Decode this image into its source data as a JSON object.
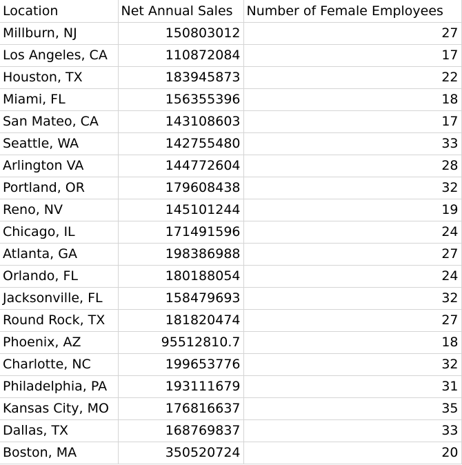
{
  "sheet": {
    "headers": [
      "Location",
      "Net Annual Sales",
      "Number of Female Employees"
    ],
    "rows": [
      [
        "Millburn, NJ",
        "150803012",
        "27"
      ],
      [
        "Los Angeles, CA",
        "110872084",
        "17"
      ],
      [
        "Houston, TX",
        "183945873",
        "22"
      ],
      [
        "Miami, FL",
        "156355396",
        "18"
      ],
      [
        "San Mateo, CA",
        "143108603",
        "17"
      ],
      [
        "Seattle, WA",
        "142755480",
        "33"
      ],
      [
        "Arlington VA",
        "144772604",
        "28"
      ],
      [
        "Portland, OR",
        "179608438",
        "32"
      ],
      [
        "Reno, NV",
        "145101244",
        "19"
      ],
      [
        "Chicago, IL",
        "171491596",
        "24"
      ],
      [
        "Atlanta, GA",
        "198386988",
        "27"
      ],
      [
        "Orlando, FL",
        "180188054",
        "24"
      ],
      [
        "Jacksonville, FL",
        "158479693",
        "32"
      ],
      [
        "Round Rock, TX",
        "181820474",
        "27"
      ],
      [
        "Phoenix, AZ",
        "95512810.7",
        "18"
      ],
      [
        "Charlotte, NC",
        "199653776",
        "32"
      ],
      [
        "Philadelphia, PA",
        "193111679",
        "31"
      ],
      [
        "Kansas City, MO",
        "176816637",
        "35"
      ],
      [
        "Dallas, TX",
        "168769837",
        "33"
      ],
      [
        "Boston, MA",
        "350520724",
        "20"
      ]
    ]
  }
}
